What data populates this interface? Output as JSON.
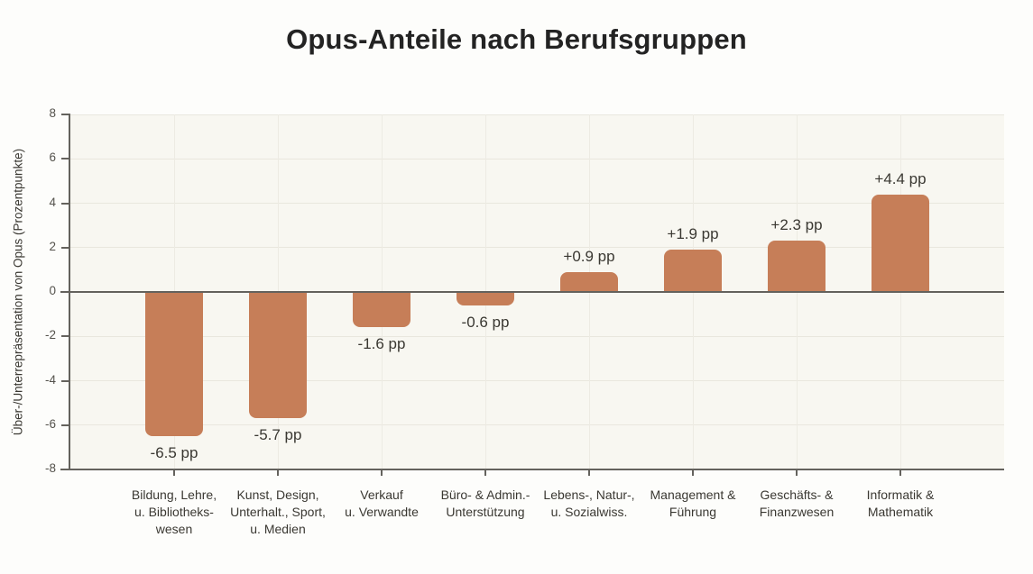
{
  "chart_data": {
    "type": "bar",
    "title": "Opus-Anteile nach Berufsgruppen",
    "ylabel": "Über-/Unterrepräsentation von Opus (Prozentpunkte)",
    "ylim": [
      -8,
      8
    ],
    "yticks": [
      8,
      6,
      4,
      2,
      0,
      -2,
      -4,
      -6,
      -8
    ],
    "grid": true,
    "legend": "none",
    "categories": [
      [
        "Bildung, Lehre,",
        "u. Bibliotheks-",
        "wesen"
      ],
      [
        "Kunst, Design,",
        "Unterhalt., Sport,",
        "u. Medien"
      ],
      [
        "Verkauf",
        "u. Verwandte"
      ],
      [
        "Büro- & Admin.-",
        "Unterstützung"
      ],
      [
        "Lebens-, Natur-,",
        "u. Sozialwiss."
      ],
      [
        "Management &",
        "Führung"
      ],
      [
        "Geschäfts- &",
        "Finanzwesen"
      ],
      [
        "Informatik &",
        "Mathematik"
      ]
    ],
    "values": [
      -6.5,
      -5.7,
      -1.6,
      -0.6,
      0.9,
      1.9,
      2.3,
      4.4
    ],
    "value_labels": [
      "-6.5 pp",
      "-5.7 pp",
      "-1.6 pp",
      "-0.6 pp",
      "+0.9 pp",
      "+1.9 pp",
      "+2.3 pp",
      "+4.4 pp"
    ],
    "colors": {
      "bar": "#c67e58",
      "plot_background": "#f8f7f1",
      "page_background": "#fdfdfb",
      "axis": "#64625d",
      "gridline": "#e9e7de",
      "title_text": "#232323",
      "label_text": "#3a3832"
    }
  }
}
